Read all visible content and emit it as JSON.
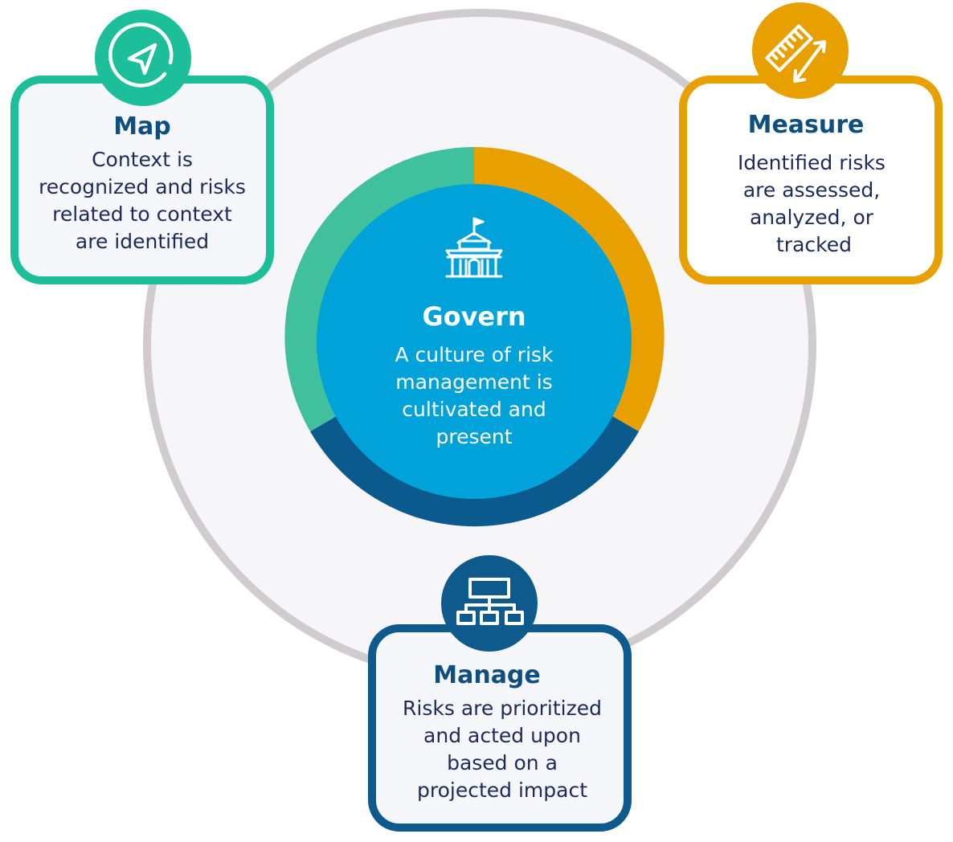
{
  "colors": {
    "map": "#1dbf9a",
    "measure": "#e8a000",
    "manage": "#0e5a8c",
    "govern": "#00a3d9",
    "title_text": "#0e4f80",
    "body_text": "#1f2a5a",
    "outer_ring": "#cfcbcf",
    "inner_bg": "#f6f6f8",
    "govern_ring_green": "#40c09c",
    "govern_ring_orange": "#e8a000",
    "govern_ring_navy": "#0a5a8e"
  },
  "govern": {
    "title": "Govern",
    "lines": [
      "A culture of risk",
      "management is",
      "cultivated and",
      "present"
    ],
    "icon": "school-building-icon"
  },
  "map": {
    "title": "Map",
    "lines": [
      "Context is",
      "recognized and risks",
      "related to context",
      "are identified"
    ],
    "icon": "navigation-arrow-icon"
  },
  "measure": {
    "title": "Measure",
    "lines": [
      "Identified risks",
      "are assessed,",
      "analyzed, or",
      "tracked"
    ],
    "icon": "ruler-measure-icon"
  },
  "manage": {
    "title": "Manage",
    "lines": [
      "Risks are prioritized",
      "and acted upon",
      "based on a",
      "projected impact"
    ],
    "icon": "hierarchy-chart-icon"
  }
}
